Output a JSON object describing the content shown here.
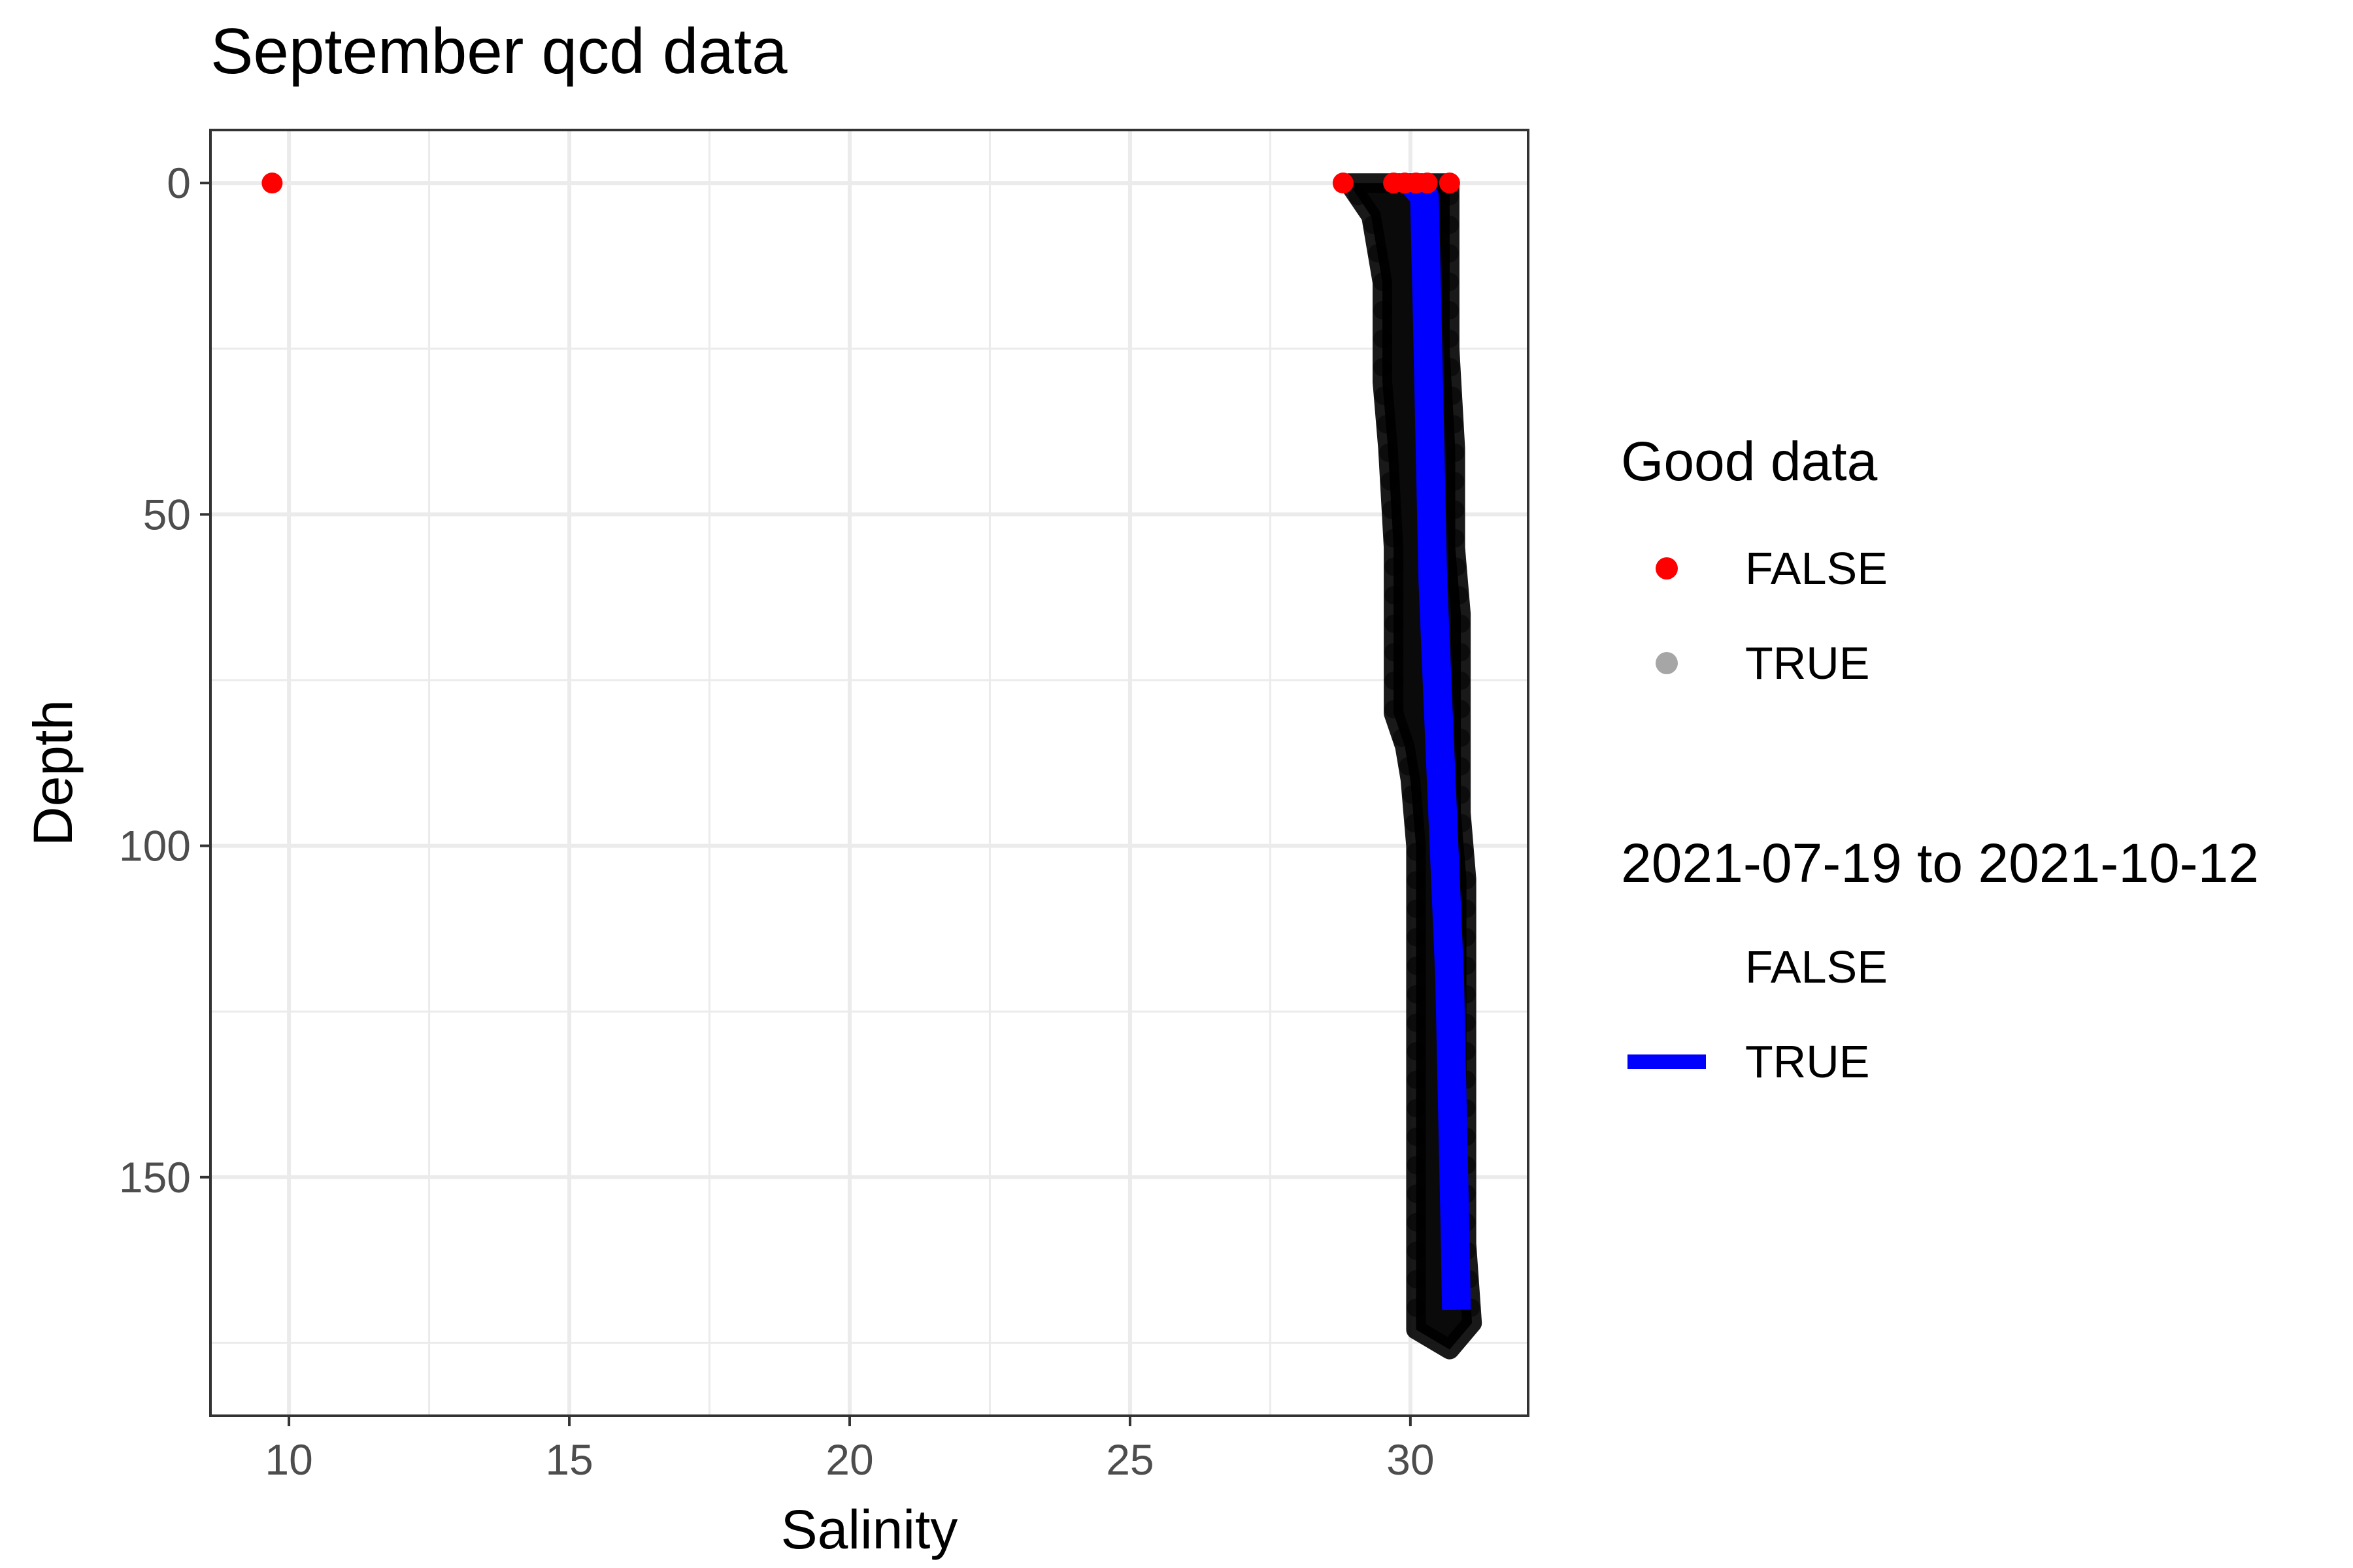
{
  "chart_data": {
    "type": "scatter",
    "title": "September qcd data",
    "xlabel": "Salinity",
    "ylabel": "Depth",
    "xlim": [
      8.6,
      32.1
    ],
    "ylim": [
      186,
      -8
    ],
    "y_reversed": true,
    "x_ticks": [
      10,
      15,
      20,
      25,
      30
    ],
    "y_ticks": [
      0,
      50,
      100,
      150
    ],
    "grid": true,
    "legend_position": "right",
    "legends": [
      {
        "title": "Good data",
        "entries": [
          {
            "label": "FALSE",
            "color": "#ff0000",
            "symbol": "point"
          },
          {
            "label": "TRUE",
            "color": "#000000",
            "symbol": "point",
            "opacity": 0.35
          }
        ]
      },
      {
        "title": "2021-07-19 to 2021-10-12",
        "entries": [
          {
            "label": "FALSE",
            "color": "none",
            "symbol": "line"
          },
          {
            "label": "TRUE",
            "color": "#0000ff",
            "symbol": "line"
          }
        ]
      }
    ],
    "series": [
      {
        "name": "FALSE",
        "color": "#ff0000",
        "points": [
          {
            "x": 9.7,
            "y": 0
          },
          {
            "x": 28.8,
            "y": 0
          },
          {
            "x": 29.7,
            "y": 0
          },
          {
            "x": 29.9,
            "y": 0
          },
          {
            "x": 30.1,
            "y": 0
          },
          {
            "x": 30.3,
            "y": 0
          },
          {
            "x": 30.7,
            "y": 0
          }
        ]
      },
      {
        "name": "TRUE",
        "color": "#000000",
        "opacity": 0.35,
        "band_left": [
          [
            28.9,
            0
          ],
          [
            29.3,
            5
          ],
          [
            29.5,
            15
          ],
          [
            29.5,
            30
          ],
          [
            29.6,
            40
          ],
          [
            29.7,
            55
          ],
          [
            29.7,
            65
          ],
          [
            29.7,
            80
          ],
          [
            29.9,
            85
          ],
          [
            30.0,
            90
          ],
          [
            30.1,
            100
          ],
          [
            30.1,
            120
          ],
          [
            30.1,
            140
          ],
          [
            30.1,
            160
          ],
          [
            30.1,
            173
          ]
        ],
        "band_right": [
          [
            30.7,
            0
          ],
          [
            30.7,
            10
          ],
          [
            30.7,
            25
          ],
          [
            30.8,
            40
          ],
          [
            30.8,
            55
          ],
          [
            30.9,
            65
          ],
          [
            30.9,
            80
          ],
          [
            30.9,
            95
          ],
          [
            31.0,
            105
          ],
          [
            31.0,
            120
          ],
          [
            31.0,
            140
          ],
          [
            31.0,
            160
          ],
          [
            31.1,
            172
          ],
          [
            30.7,
            176
          ]
        ]
      },
      {
        "name": "TRUE",
        "line": true,
        "color": "#0000ff",
        "profile": [
          {
            "x": 30.05,
            "y": 0
          },
          {
            "x": 30.25,
            "y": 2
          },
          {
            "x": 30.3,
            "y": 20
          },
          {
            "x": 30.35,
            "y": 40
          },
          {
            "x": 30.4,
            "y": 60
          },
          {
            "x": 30.5,
            "y": 80
          },
          {
            "x": 30.6,
            "y": 100
          },
          {
            "x": 30.7,
            "y": 120
          },
          {
            "x": 30.75,
            "y": 140
          },
          {
            "x": 30.8,
            "y": 160
          },
          {
            "x": 30.82,
            "y": 170
          }
        ]
      }
    ]
  }
}
